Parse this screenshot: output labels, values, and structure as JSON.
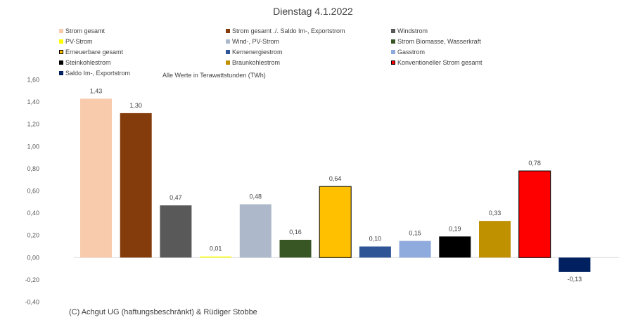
{
  "chart_data": {
    "type": "bar",
    "title": "Dienstag 4.1.2022",
    "note": "Alle Werte in Terawattstunden (TWh)",
    "copyright": "(C) Achgut UG (haftungsbeschränkt) & Rüdiger Stobbe",
    "ylim": [
      -0.4,
      1.6
    ],
    "yticks": [
      1.6,
      1.4,
      1.2,
      1.0,
      0.8,
      0.6,
      0.4,
      0.2,
      0.0,
      -0.2,
      -0.4
    ],
    "ytick_labels": [
      "1,60",
      "1,40",
      "1,20",
      "1,00",
      "0,80",
      "0,60",
      "0,40",
      "0,20",
      "0,00",
      "-0,20",
      "-0,40"
    ],
    "grid": false,
    "legend_position": "top",
    "series": [
      {
        "name": "Strom gesamt",
        "value": 1.43,
        "label": "1,43",
        "color": "#f8cbad",
        "outlined": false
      },
      {
        "name": "Strom gesamt ./. Saldo Im-, Exportstrom",
        "value": 1.3,
        "label": "1,30",
        "color": "#843c0c",
        "outlined": false
      },
      {
        "name": "Windstrom",
        "value": 0.47,
        "label": "0,47",
        "color": "#595959",
        "outlined": false
      },
      {
        "name": "PV-Strom",
        "value": 0.01,
        "label": "0,01",
        "color": "#ffff00",
        "outlined": false
      },
      {
        "name": "Wind-, PV-Strom",
        "value": 0.48,
        "label": "0,48",
        "color": "#adb9ca",
        "outlined": false
      },
      {
        "name": "Strom Biomasse, Wasserkraft",
        "value": 0.16,
        "label": "0,16",
        "color": "#375623",
        "outlined": false
      },
      {
        "name": "Erneuerbare gesamt",
        "value": 0.64,
        "label": "0,64",
        "color": "#ffc000",
        "outlined": true
      },
      {
        "name": "Kernenergiestrom",
        "value": 0.1,
        "label": "0,10",
        "color": "#2f5597",
        "outlined": false
      },
      {
        "name": "Gasstrom",
        "value": 0.15,
        "label": "0,15",
        "color": "#8faadc",
        "outlined": false
      },
      {
        "name": "Steinkohlestrom",
        "value": 0.19,
        "label": "0,19",
        "color": "#000000",
        "outlined": false
      },
      {
        "name": "Braunkohlestrom",
        "value": 0.33,
        "label": "0,33",
        "color": "#bf9000",
        "outlined": false
      },
      {
        "name": "Konventioneller Strom gesamt",
        "value": 0.78,
        "label": "0,78",
        "color": "#ff0000",
        "outlined": true
      },
      {
        "name": "Saldo Im-, Exportstrom",
        "value": -0.13,
        "label": "-0,13",
        "color": "#002060",
        "outlined": false
      }
    ]
  }
}
